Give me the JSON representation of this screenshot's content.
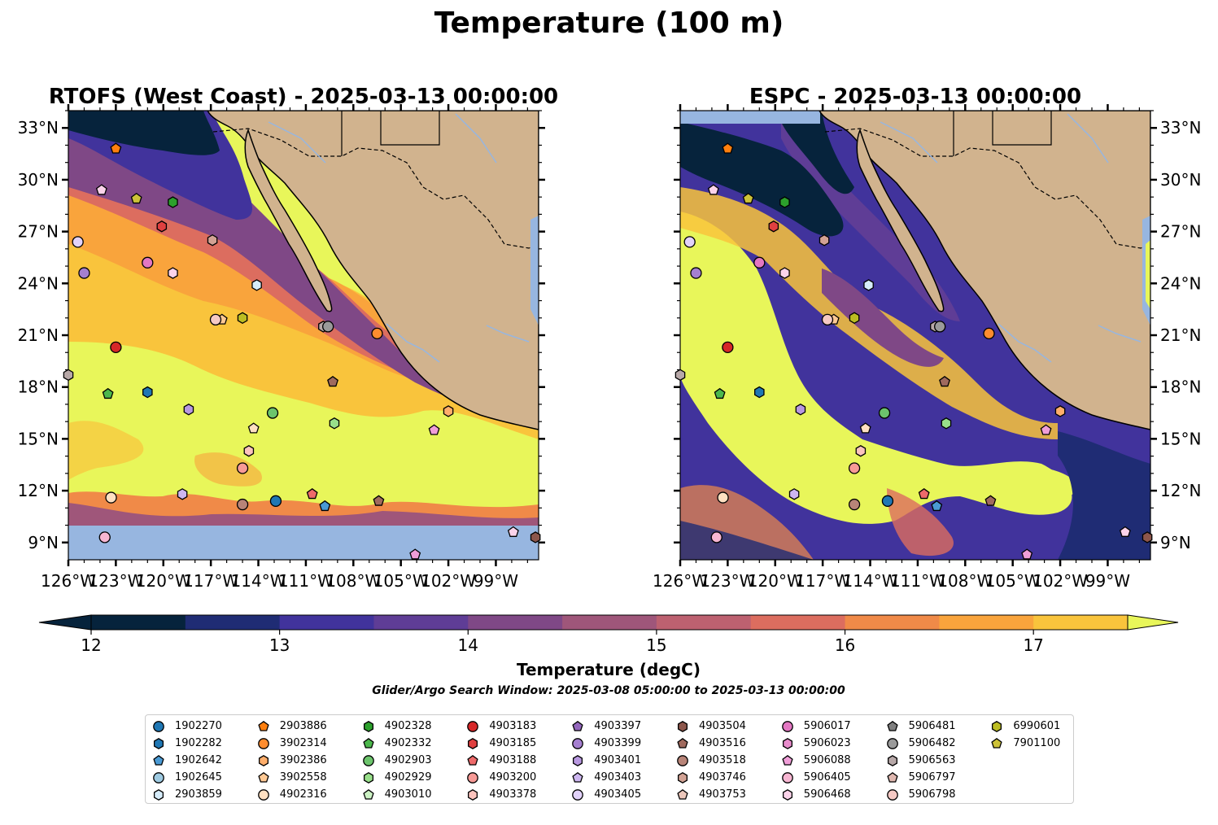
{
  "suptitle": "Temperature (100 m)",
  "chart_data": [
    {
      "type": "heatmap",
      "title": "RTOFS (West Coast) - 2025-03-13 00:00:00",
      "x_ticks": [
        "126°W",
        "123°W",
        "120°W",
        "117°W",
        "114°W",
        "111°W",
        "108°W",
        "105°W",
        "102°W",
        "99°W"
      ],
      "y_ticks": [
        "9°N",
        "12°N",
        "15°N",
        "18°N",
        "21°N",
        "24°N",
        "27°N",
        "30°N",
        "33°N"
      ],
      "xlim": [
        -126,
        -96.3
      ],
      "ylim": [
        8,
        34
      ],
      "y_tick_side": "left"
    },
    {
      "type": "heatmap",
      "title": "ESPC - 2025-03-13 00:00:00",
      "x_ticks": [
        "126°W",
        "123°W",
        "120°W",
        "117°W",
        "114°W",
        "111°W",
        "108°W",
        "105°W",
        "102°W",
        "99°W"
      ],
      "y_ticks": [
        "9°N",
        "12°N",
        "15°N",
        "18°N",
        "21°N",
        "24°N",
        "27°N",
        "30°N",
        "33°N"
      ],
      "xlim": [
        -126,
        -96.3
      ],
      "ylim": [
        8,
        34
      ],
      "y_tick_side": "right"
    }
  ],
  "colorbar": {
    "label": "Temperature (degC)",
    "ticks": [
      "12",
      "13",
      "14",
      "15",
      "16",
      "17"
    ],
    "range": [
      12,
      17.5
    ],
    "step": 0.5,
    "colors": [
      "#06233c",
      "#1f2c74",
      "#41339c",
      "#5f3d96",
      "#7f4886",
      "#9f567a",
      "#bd6170",
      "#dc6d5f",
      "#f08a48",
      "#f9a43c",
      "#f9c43c",
      "#e8f65a"
    ]
  },
  "search_window": "Glider/Argo Search Window: 2025-03-08 05:00:00 to 2025-03-13 00:00:00",
  "legend": [
    {
      "id": "1902270",
      "color": "#1f77b4",
      "marker": "circle"
    },
    {
      "id": "1902282",
      "color": "#1f77b4",
      "marker": "hexagon"
    },
    {
      "id": "1902642",
      "color": "#4a9ad4",
      "marker": "pentagon"
    },
    {
      "id": "1902645",
      "color": "#9ecae1",
      "marker": "circle"
    },
    {
      "id": "2903859",
      "color": "#d6ecfa",
      "marker": "hexagon"
    },
    {
      "id": "2903886",
      "color": "#ff7f0e",
      "marker": "pentagon"
    },
    {
      "id": "3902314",
      "color": "#ff8c2e",
      "marker": "circle"
    },
    {
      "id": "3902386",
      "color": "#ffae6b",
      "marker": "hexagon"
    },
    {
      "id": "3902558",
      "color": "#ffc994",
      "marker": "pentagon"
    },
    {
      "id": "4902316",
      "color": "#ffe0c2",
      "marker": "circle"
    },
    {
      "id": "4902328",
      "color": "#2ca02c",
      "marker": "hexagon"
    },
    {
      "id": "4902332",
      "color": "#4cb84c",
      "marker": "pentagon"
    },
    {
      "id": "4902903",
      "color": "#6cc46c",
      "marker": "circle"
    },
    {
      "id": "4902929",
      "color": "#98df8a",
      "marker": "hexagon"
    },
    {
      "id": "4903010",
      "color": "#ccf2c4",
      "marker": "pentagon"
    },
    {
      "id": "4903183",
      "color": "#d62728",
      "marker": "circle"
    },
    {
      "id": "4903185",
      "color": "#e04040",
      "marker": "hexagon"
    },
    {
      "id": "4903188",
      "color": "#ee6a6a",
      "marker": "pentagon"
    },
    {
      "id": "4903200",
      "color": "#f79a96",
      "marker": "circle"
    },
    {
      "id": "4903378",
      "color": "#fcc3bd",
      "marker": "hexagon"
    },
    {
      "id": "4903397",
      "color": "#9467bd",
      "marker": "pentagon"
    },
    {
      "id": "4903399",
      "color": "#a57fd0",
      "marker": "circle"
    },
    {
      "id": "4903401",
      "color": "#b898e0",
      "marker": "hexagon"
    },
    {
      "id": "4903403",
      "color": "#cdb6f0",
      "marker": "pentagon"
    },
    {
      "id": "4903405",
      "color": "#e2d2fa",
      "marker": "circle"
    },
    {
      "id": "4903504",
      "color": "#8c564b",
      "marker": "hexagon"
    },
    {
      "id": "4903516",
      "color": "#a06a5e",
      "marker": "pentagon"
    },
    {
      "id": "4903518",
      "color": "#b88478",
      "marker": "circle"
    },
    {
      "id": "4903746",
      "color": "#d2a294",
      "marker": "hexagon"
    },
    {
      "id": "4903753",
      "color": "#ecc7bb",
      "marker": "pentagon"
    },
    {
      "id": "5906017",
      "color": "#e377c2",
      "marker": "circle"
    },
    {
      "id": "5906023",
      "color": "#e88ccc",
      "marker": "hexagon"
    },
    {
      "id": "5906088",
      "color": "#f09ed8",
      "marker": "pentagon"
    },
    {
      "id": "5906405",
      "color": "#f7b6d2",
      "marker": "circle"
    },
    {
      "id": "5906468",
      "color": "#fbd3ea",
      "marker": "hexagon"
    },
    {
      "id": "5906481",
      "color": "#7f7f7f",
      "marker": "pentagon"
    },
    {
      "id": "5906482",
      "color": "#9a9a9a",
      "marker": "circle"
    },
    {
      "id": "5906563",
      "color": "#b7a8a8",
      "marker": "hexagon"
    },
    {
      "id": "5906797",
      "color": "#e0b8b0",
      "marker": "pentagon"
    },
    {
      "id": "5906798",
      "color": "#f5c9c4",
      "marker": "circle"
    },
    {
      "id": "6990601",
      "color": "#bcbd22",
      "marker": "hexagon"
    },
    {
      "id": "7901100",
      "color": "#cdc238",
      "marker": "pentagon"
    }
  ],
  "floats": [
    {
      "lon": -123.0,
      "lat": 31.8,
      "color": "#ff7f0e",
      "marker": "pentagon"
    },
    {
      "lon": -123.9,
      "lat": 29.4,
      "color": "#fbd3ea",
      "marker": "pentagon"
    },
    {
      "lon": -121.7,
      "lat": 28.9,
      "color": "#cdc238",
      "marker": "pentagon"
    },
    {
      "lon": -119.4,
      "lat": 28.7,
      "color": "#2ca02c",
      "marker": "hexagon"
    },
    {
      "lon": -120.1,
      "lat": 27.3,
      "color": "#e04040",
      "marker": "hexagon"
    },
    {
      "lon": -125.4,
      "lat": 26.4,
      "color": "#e2d2fa",
      "marker": "circle"
    },
    {
      "lon": -116.9,
      "lat": 26.5,
      "color": "#d2a294",
      "marker": "hexagon"
    },
    {
      "lon": -121.0,
      "lat": 25.2,
      "color": "#e377c2",
      "marker": "circle"
    },
    {
      "lon": -119.4,
      "lat": 24.6,
      "color": "#fbd3ea",
      "marker": "hexagon"
    },
    {
      "lon": -125.0,
      "lat": 24.6,
      "color": "#a57fd0",
      "marker": "circle"
    },
    {
      "lon": -114.1,
      "lat": 23.9,
      "color": "#d6ecfa",
      "marker": "hexagon"
    },
    {
      "lon": -116.3,
      "lat": 21.9,
      "color": "#ffc994",
      "marker": "pentagon"
    },
    {
      "lon": -116.7,
      "lat": 21.9,
      "color": "#f5c9c4",
      "marker": "circle"
    },
    {
      "lon": -115.0,
      "lat": 22.0,
      "color": "#bcbd22",
      "marker": "hexagon"
    },
    {
      "lon": -109.9,
      "lat": 21.5,
      "color": "#b7a8a8",
      "marker": "hexagon"
    },
    {
      "lon": -109.6,
      "lat": 21.5,
      "color": "#9a9a9a",
      "marker": "circle"
    },
    {
      "lon": -106.5,
      "lat": 21.1,
      "color": "#ff8c2e",
      "marker": "circle"
    },
    {
      "lon": -123.0,
      "lat": 20.3,
      "color": "#d62728",
      "marker": "circle"
    },
    {
      "lon": -126.0,
      "lat": 18.7,
      "color": "#b7a8a8",
      "marker": "hexagon"
    },
    {
      "lon": -109.3,
      "lat": 18.3,
      "color": "#a06a5e",
      "marker": "pentagon"
    },
    {
      "lon": -123.5,
      "lat": 17.6,
      "color": "#4cb84c",
      "marker": "pentagon"
    },
    {
      "lon": -121.0,
      "lat": 17.7,
      "color": "#1f77b4",
      "marker": "hexagon"
    },
    {
      "lon": -118.4,
      "lat": 16.7,
      "color": "#b898e0",
      "marker": "hexagon"
    },
    {
      "lon": -113.1,
      "lat": 16.5,
      "color": "#6cc46c",
      "marker": "circle"
    },
    {
      "lon": -109.2,
      "lat": 15.9,
      "color": "#98df8a",
      "marker": "hexagon"
    },
    {
      "lon": -102.0,
      "lat": 16.6,
      "color": "#ffae6b",
      "marker": "hexagon"
    },
    {
      "lon": -114.3,
      "lat": 15.6,
      "color": "#ffe0c2",
      "marker": "pentagon"
    },
    {
      "lon": -102.9,
      "lat": 15.5,
      "color": "#f09ed8",
      "marker": "pentagon"
    },
    {
      "lon": -114.6,
      "lat": 14.3,
      "color": "#fcc3bd",
      "marker": "hexagon"
    },
    {
      "lon": -115.0,
      "lat": 13.3,
      "color": "#f79a96",
      "marker": "circle"
    },
    {
      "lon": -123.3,
      "lat": 11.6,
      "color": "#ffe0c2",
      "marker": "circle"
    },
    {
      "lon": -118.8,
      "lat": 11.8,
      "color": "#cdb6f0",
      "marker": "hexagon"
    },
    {
      "lon": -112.9,
      "lat": 11.4,
      "color": "#1f77b4",
      "marker": "circle"
    },
    {
      "lon": -115.0,
      "lat": 11.2,
      "color": "#b88478",
      "marker": "circle"
    },
    {
      "lon": -110.6,
      "lat": 11.8,
      "color": "#ee6a6a",
      "marker": "pentagon"
    },
    {
      "lon": -109.8,
      "lat": 11.1,
      "color": "#4a9ad4",
      "marker": "pentagon"
    },
    {
      "lon": -106.4,
      "lat": 11.4,
      "color": "#a06a5e",
      "marker": "pentagon"
    },
    {
      "lon": -123.7,
      "lat": 9.3,
      "color": "#f7b6d2",
      "marker": "circle"
    },
    {
      "lon": -104.1,
      "lat": 8.3,
      "color": "#f09ed8",
      "marker": "pentagon"
    },
    {
      "lon": -97.9,
      "lat": 9.6,
      "color": "#fbd3ea",
      "marker": "pentagon"
    },
    {
      "lon": -96.5,
      "lat": 9.3,
      "color": "#8c564b",
      "marker": "hexagon"
    }
  ]
}
